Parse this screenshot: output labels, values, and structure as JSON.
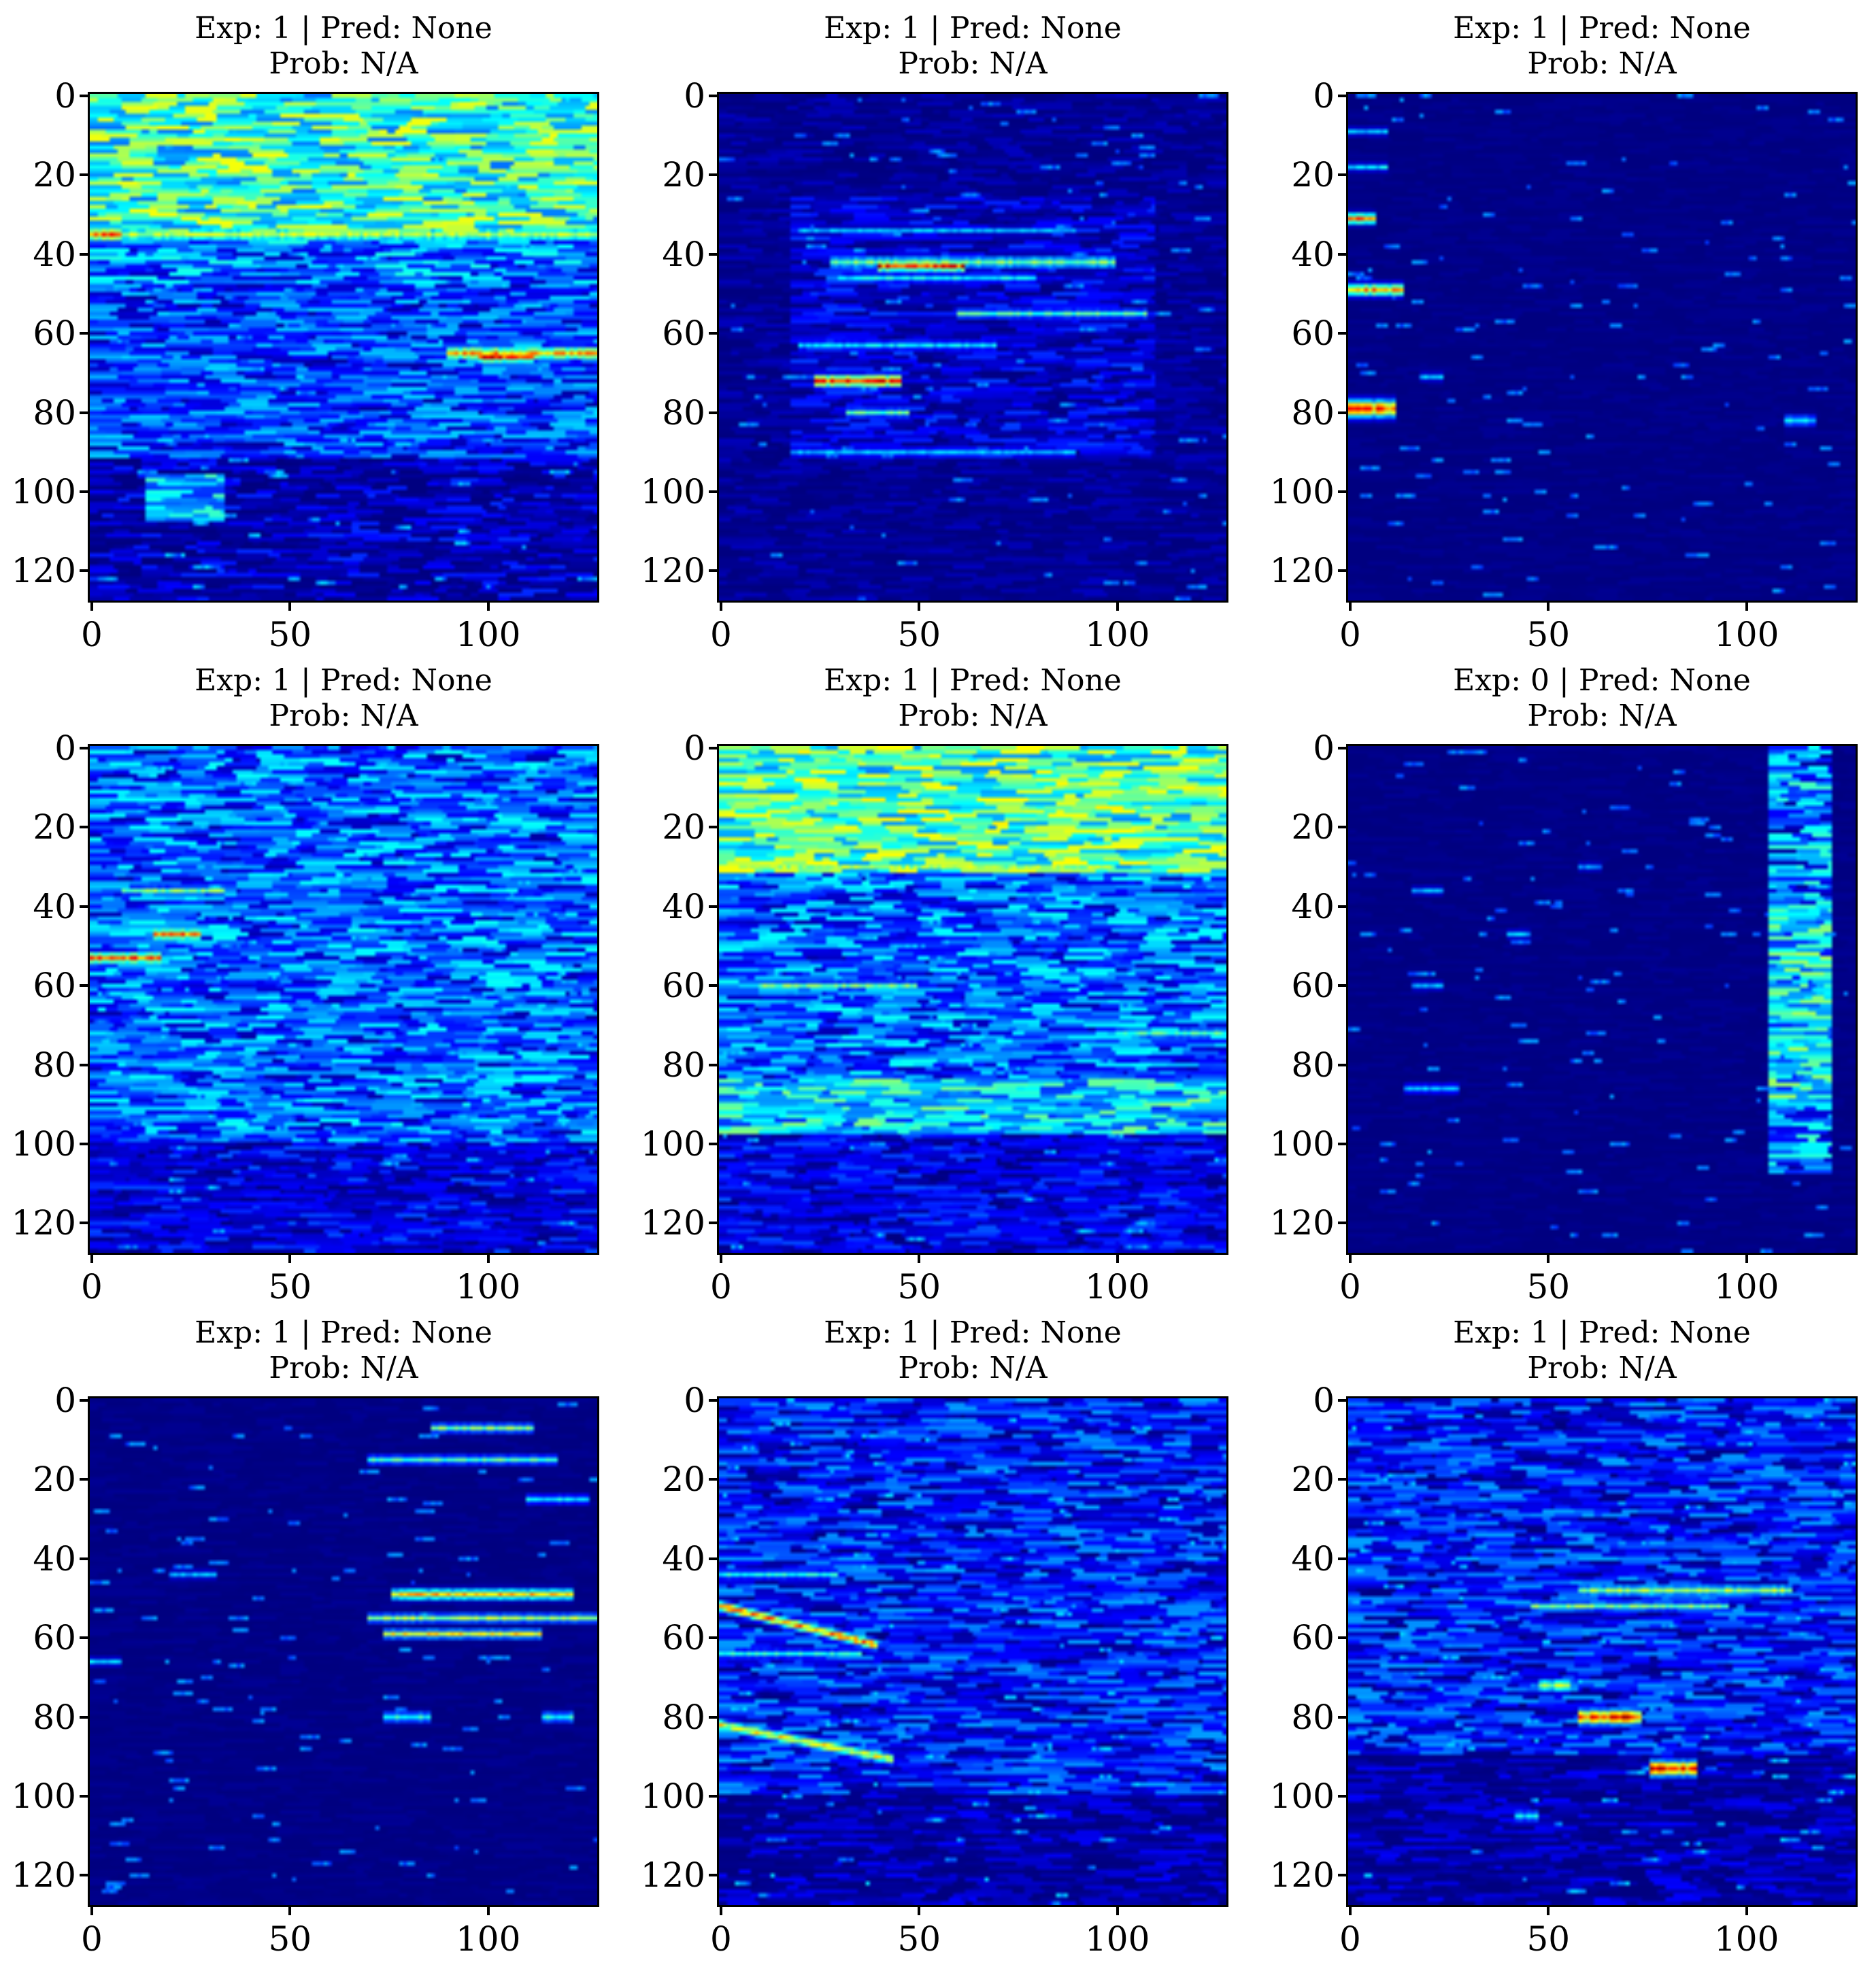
{
  "figure": {
    "layout": {
      "rows": 3,
      "cols": 3
    },
    "colormap": "jet",
    "panels": [
      {
        "title_line1": "Exp: 1 | Pred: None",
        "title_line2": "Prob: N/A"
      },
      {
        "title_line1": "Exp: 1 | Pred: None",
        "title_line2": "Prob: N/A"
      },
      {
        "title_line1": "Exp: 1 | Pred: None",
        "title_line2": "Prob: N/A"
      },
      {
        "title_line1": "Exp: 1 | Pred: None",
        "title_line2": "Prob: N/A"
      },
      {
        "title_line1": "Exp: 1 | Pred: None",
        "title_line2": "Prob: N/A"
      },
      {
        "title_line1": "Exp: 0 | Pred: None",
        "title_line2": "Prob: N/A"
      },
      {
        "title_line1": "Exp: 1 | Pred: None",
        "title_line2": "Prob: N/A"
      },
      {
        "title_line1": "Exp: 1 | Pred: None",
        "title_line2": "Prob: N/A"
      },
      {
        "title_line1": "Exp: 1 | Pred: None",
        "title_line2": "Prob: N/A"
      }
    ],
    "yticks": [
      "0",
      "20",
      "40",
      "60",
      "80",
      "100",
      "120"
    ],
    "xticks": [
      "0",
      "50",
      "100"
    ]
  },
  "chart_data": [
    {
      "type": "heatmap",
      "title": "Exp: 1 | Pred: None\nProb: N/A",
      "xlim": [
        0,
        128
      ],
      "ylim": [
        128,
        0
      ],
      "xticks": [
        0,
        50,
        100
      ],
      "yticks": [
        0,
        20,
        40,
        60,
        80,
        100,
        120
      ],
      "colormap": "jet",
      "features": {
        "seed": 11,
        "base": 0.08,
        "bands": [
          {
            "y0": 0,
            "y1": 36,
            "x0": 0,
            "x1": 128,
            "level": 0.42,
            "var": 0.2
          },
          {
            "y0": 36,
            "y1": 48,
            "x0": 0,
            "x1": 128,
            "level": 0.22,
            "var": 0.18
          },
          {
            "y0": 48,
            "y1": 92,
            "x0": 0,
            "x1": 128,
            "level": 0.17,
            "var": 0.16
          },
          {
            "y0": 96,
            "y1": 108,
            "x0": 14,
            "x1": 34,
            "level": 0.3,
            "var": 0.15
          }
        ],
        "streaks": [
          {
            "y": 35,
            "x0": 0,
            "x1": 128,
            "v": 0.62,
            "th": 1.6
          },
          {
            "y": 35,
            "x0": 0,
            "x1": 8,
            "v": 0.92,
            "th": 1.5
          },
          {
            "y": 65,
            "x0": 90,
            "x1": 128,
            "v": 0.8,
            "th": 1.5
          },
          {
            "y": 66,
            "x0": 98,
            "x1": 112,
            "v": 0.95,
            "th": 1.2
          }
        ]
      }
    },
    {
      "type": "heatmap",
      "title": "Exp: 1 | Pred: None\nProb: N/A",
      "xlim": [
        0,
        128
      ],
      "ylim": [
        128,
        0
      ],
      "xticks": [
        0,
        50,
        100
      ],
      "yticks": [
        0,
        20,
        40,
        60,
        80,
        100,
        120
      ],
      "colormap": "jet",
      "features": {
        "seed": 22,
        "base": 0.03,
        "bands": [
          {
            "y0": 26,
            "y1": 92,
            "x0": 18,
            "x1": 110,
            "level": 0.06,
            "var": 0.12
          }
        ],
        "streaks": [
          {
            "y": 42,
            "x0": 28,
            "x1": 100,
            "v": 0.55,
            "th": 1.3
          },
          {
            "y": 43,
            "x0": 40,
            "x1": 62,
            "v": 0.95,
            "th": 1.2
          },
          {
            "y": 46,
            "x0": 30,
            "x1": 80,
            "v": 0.42,
            "th": 1.0
          },
          {
            "y": 55,
            "x0": 60,
            "x1": 108,
            "v": 0.5,
            "th": 1.0
          },
          {
            "y": 63,
            "x0": 20,
            "x1": 70,
            "v": 0.4,
            "th": 1.0
          },
          {
            "y": 72,
            "x0": 24,
            "x1": 46,
            "v": 0.92,
            "th": 1.4
          },
          {
            "y": 80,
            "x0": 32,
            "x1": 48,
            "v": 0.5,
            "th": 1.0
          },
          {
            "y": 90,
            "x0": 18,
            "x1": 90,
            "v": 0.35,
            "th": 1.0
          },
          {
            "y": 34,
            "x0": 20,
            "x1": 90,
            "v": 0.35,
            "th": 0.8
          }
        ]
      }
    },
    {
      "type": "heatmap",
      "title": "Exp: 1 | Pred: None\nProb: N/A",
      "xlim": [
        0,
        128
      ],
      "ylim": [
        128,
        0
      ],
      "xticks": [
        0,
        50,
        100
      ],
      "yticks": [
        0,
        20,
        40,
        60,
        80,
        100,
        120
      ],
      "colormap": "jet",
      "features": {
        "seed": 33,
        "base": 0.01,
        "bands": [],
        "streaks": [
          {
            "y": 31,
            "x0": 0,
            "x1": 7,
            "v": 0.85,
            "th": 1.2
          },
          {
            "y": 49,
            "x0": 0,
            "x1": 14,
            "v": 0.8,
            "th": 1.4
          },
          {
            "y": 79,
            "x0": 0,
            "x1": 12,
            "v": 0.9,
            "th": 2.0
          },
          {
            "y": 82,
            "x0": 110,
            "x1": 118,
            "v": 0.4,
            "th": 1.2
          },
          {
            "y": 18,
            "x0": 0,
            "x1": 10,
            "v": 0.4,
            "th": 0.8
          },
          {
            "y": 9,
            "x0": 0,
            "x1": 10,
            "v": 0.35,
            "th": 0.8
          },
          {
            "y": 71,
            "x0": 18,
            "x1": 24,
            "v": 0.35,
            "th": 0.8
          }
        ]
      }
    },
    {
      "type": "heatmap",
      "title": "Exp: 1 | Pred: None\nProb: N/A",
      "xlim": [
        0,
        128
      ],
      "ylim": [
        128,
        0
      ],
      "xticks": [
        0,
        50,
        100
      ],
      "yticks": [
        0,
        20,
        40,
        60,
        80,
        100,
        120
      ],
      "colormap": "jet",
      "features": {
        "seed": 44,
        "base": 0.1,
        "bands": [
          {
            "y0": 0,
            "y1": 100,
            "x0": 0,
            "x1": 128,
            "level": 0.2,
            "var": 0.18
          },
          {
            "y0": 100,
            "y1": 128,
            "x0": 0,
            "x1": 128,
            "level": 0.04,
            "var": 0.08
          }
        ],
        "streaks": [
          {
            "y": 53,
            "x0": 0,
            "x1": 18,
            "v": 0.9,
            "th": 1.3
          },
          {
            "y": 47,
            "x0": 16,
            "x1": 28,
            "v": 0.85,
            "th": 1.3
          },
          {
            "y": 36,
            "x0": 8,
            "x1": 34,
            "v": 0.55,
            "th": 1.0
          }
        ]
      }
    },
    {
      "type": "heatmap",
      "title": "Exp: 1 | Pred: None\nProb: N/A",
      "xlim": [
        0,
        128
      ],
      "ylim": [
        128,
        0
      ],
      "xticks": [
        0,
        50,
        100
      ],
      "yticks": [
        0,
        20,
        40,
        60,
        80,
        100,
        120
      ],
      "colormap": "jet",
      "features": {
        "seed": 55,
        "base": 0.1,
        "bands": [
          {
            "y0": 0,
            "y1": 32,
            "x0": 0,
            "x1": 128,
            "level": 0.44,
            "var": 0.2
          },
          {
            "y0": 32,
            "y1": 84,
            "x0": 0,
            "x1": 128,
            "level": 0.2,
            "var": 0.18
          },
          {
            "y0": 84,
            "y1": 98,
            "x0": 0,
            "x1": 128,
            "level": 0.33,
            "var": 0.18
          },
          {
            "y0": 98,
            "y1": 128,
            "x0": 0,
            "x1": 128,
            "level": 0.05,
            "var": 0.1
          }
        ],
        "streaks": [
          {
            "y": 30,
            "x0": 0,
            "x1": 100,
            "v": 0.6,
            "th": 1.0
          },
          {
            "y": 60,
            "x0": 10,
            "x1": 50,
            "v": 0.55,
            "th": 1.0
          },
          {
            "y": 72,
            "x0": 100,
            "x1": 128,
            "v": 0.5,
            "th": 1.2
          }
        ]
      }
    },
    {
      "type": "heatmap",
      "title": "Exp: 0 | Pred: None\nProb: N/A",
      "xlim": [
        0,
        128
      ],
      "ylim": [
        128,
        0
      ],
      "xticks": [
        0,
        50,
        100
      ],
      "yticks": [
        0,
        20,
        40,
        60,
        80,
        100,
        120
      ],
      "colormap": "jet",
      "features": {
        "seed": 66,
        "base": 0.01,
        "bands": [
          {
            "y0": 0,
            "y1": 108,
            "x0": 106,
            "x1": 122,
            "level": 0.22,
            "var": 0.22
          },
          {
            "y0": 40,
            "y1": 90,
            "x0": 106,
            "x1": 122,
            "level": 0.32,
            "var": 0.22
          }
        ],
        "streaks": [
          {
            "y": 36,
            "x0": 16,
            "x1": 24,
            "v": 0.35,
            "th": 0.8
          },
          {
            "y": 60,
            "x0": 16,
            "x1": 24,
            "v": 0.35,
            "th": 0.8
          },
          {
            "y": 86,
            "x0": 14,
            "x1": 28,
            "v": 0.35,
            "th": 1.0
          },
          {
            "y": 47,
            "x0": 40,
            "x1": 46,
            "v": 0.35,
            "th": 0.8
          },
          {
            "y": 30,
            "x0": 58,
            "x1": 64,
            "v": 0.3,
            "th": 0.8
          }
        ]
      }
    },
    {
      "type": "heatmap",
      "title": "Exp: 1 | Pred: None\nProb: N/A",
      "xlim": [
        0,
        128
      ],
      "ylim": [
        128,
        0
      ],
      "xticks": [
        0,
        50,
        100
      ],
      "yticks": [
        0,
        20,
        40,
        60,
        80,
        100,
        120
      ],
      "colormap": "jet",
      "features": {
        "seed": 77,
        "base": 0.01,
        "bands": [],
        "streaks": [
          {
            "y": 7,
            "x0": 86,
            "x1": 112,
            "v": 0.55,
            "th": 1.0
          },
          {
            "y": 15,
            "x0": 70,
            "x1": 118,
            "v": 0.5,
            "th": 1.0
          },
          {
            "y": 25,
            "x0": 110,
            "x1": 126,
            "v": 0.4,
            "th": 1.0
          },
          {
            "y": 49,
            "x0": 76,
            "x1": 122,
            "v": 0.75,
            "th": 1.2
          },
          {
            "y": 55,
            "x0": 70,
            "x1": 128,
            "v": 0.6,
            "th": 1.0
          },
          {
            "y": 59,
            "x0": 74,
            "x1": 114,
            "v": 0.7,
            "th": 1.0
          },
          {
            "y": 80,
            "x0": 74,
            "x1": 86,
            "v": 0.45,
            "th": 1.2
          },
          {
            "y": 80,
            "x0": 114,
            "x1": 122,
            "v": 0.45,
            "th": 1.2
          },
          {
            "y": 44,
            "x0": 20,
            "x1": 32,
            "v": 0.35,
            "th": 0.8
          },
          {
            "y": 66,
            "x0": 0,
            "x1": 8,
            "v": 0.4,
            "th": 0.8
          }
        ]
      }
    },
    {
      "type": "heatmap",
      "title": "Exp: 1 | Pred: None\nProb: N/A",
      "xlim": [
        0,
        128
      ],
      "ylim": [
        128,
        0
      ],
      "xticks": [
        0,
        50,
        100
      ],
      "yticks": [
        0,
        20,
        40,
        60,
        80,
        100,
        120
      ],
      "colormap": "jet",
      "features": {
        "seed": 88,
        "base": 0.06,
        "bands": [
          {
            "y0": 0,
            "y1": 100,
            "x0": 0,
            "x1": 128,
            "level": 0.12,
            "var": 0.16
          }
        ],
        "streaks": [
          {
            "y": 52,
            "x0": 0,
            "x1": 40,
            "v": 0.85,
            "th": 1.2,
            "slope": 0.25
          },
          {
            "y": 82,
            "x0": 0,
            "x1": 44,
            "v": 0.7,
            "th": 1.3,
            "slope": 0.2
          },
          {
            "y": 44,
            "x0": 0,
            "x1": 30,
            "v": 0.45,
            "th": 1.0
          },
          {
            "y": 64,
            "x0": 0,
            "x1": 36,
            "v": 0.45,
            "th": 1.0
          }
        ]
      }
    },
    {
      "type": "heatmap",
      "title": "Exp: 1 | Pred: None\nProb: N/A",
      "xlim": [
        0,
        128
      ],
      "ylim": [
        128,
        0
      ],
      "xticks": [
        0,
        50,
        100
      ],
      "yticks": [
        0,
        20,
        40,
        60,
        80,
        100,
        120
      ],
      "colormap": "jet",
      "features": {
        "seed": 99,
        "base": 0.06,
        "bands": [
          {
            "y0": 0,
            "y1": 90,
            "x0": 0,
            "x1": 128,
            "level": 0.12,
            "var": 0.16
          }
        ],
        "streaks": [
          {
            "y": 48,
            "x0": 58,
            "x1": 112,
            "v": 0.6,
            "th": 1.2
          },
          {
            "y": 52,
            "x0": 46,
            "x1": 96,
            "v": 0.55,
            "th": 1.0
          },
          {
            "y": 72,
            "x0": 48,
            "x1": 56,
            "v": 0.6,
            "th": 1.5
          },
          {
            "y": 80,
            "x0": 58,
            "x1": 74,
            "v": 0.95,
            "th": 1.8
          },
          {
            "y": 93,
            "x0": 76,
            "x1": 88,
            "v": 0.97,
            "th": 1.8
          },
          {
            "y": 105,
            "x0": 42,
            "x1": 48,
            "v": 0.4,
            "th": 1.2
          }
        ]
      }
    }
  ]
}
